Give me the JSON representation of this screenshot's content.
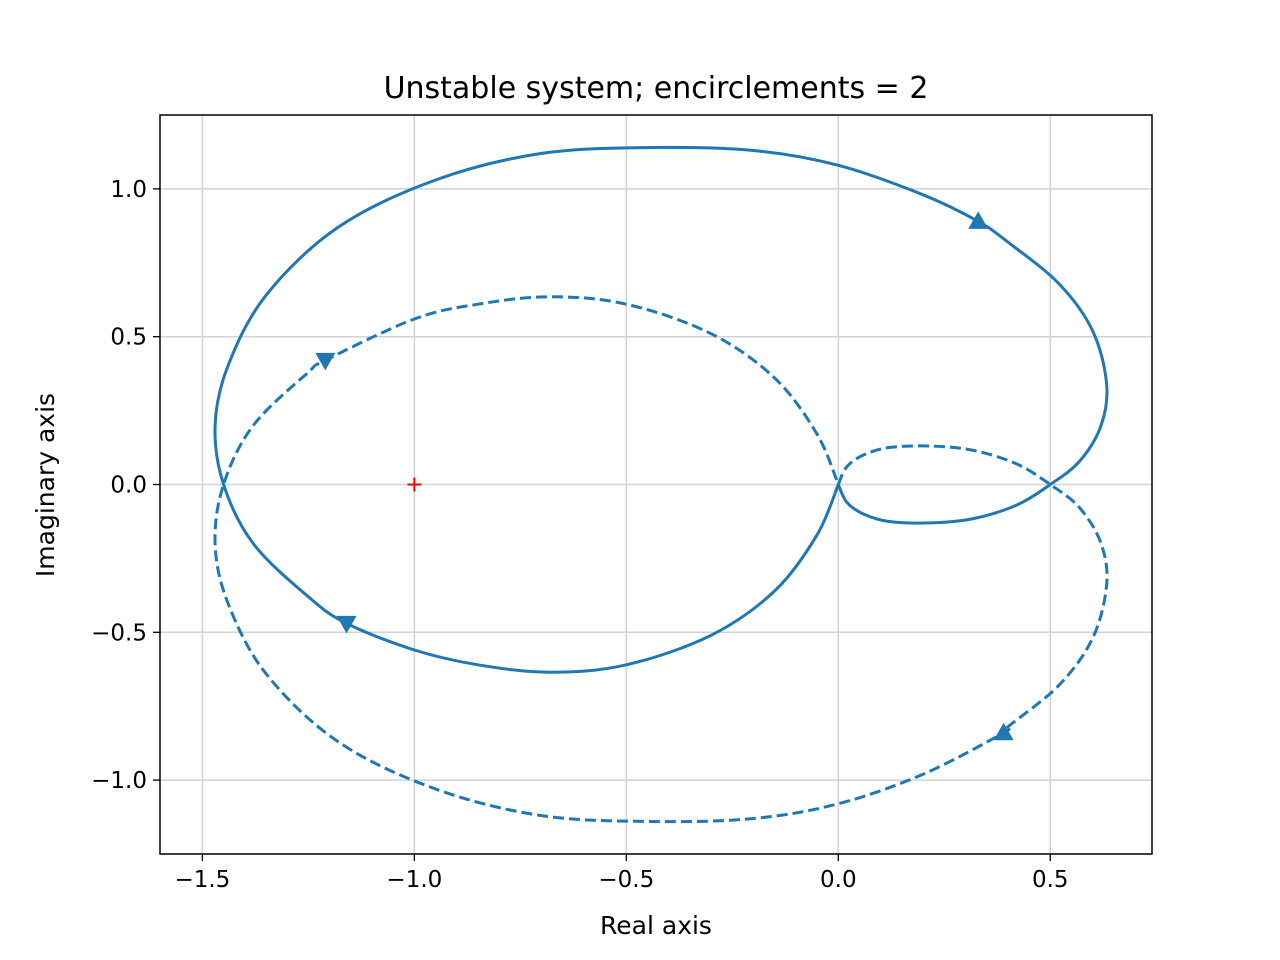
{
  "chart_data": {
    "type": "line",
    "title": "Unstable system; encirclements = 2",
    "xlabel": "Real axis",
    "ylabel": "Imaginary axis",
    "xlim": [
      -1.6,
      0.74
    ],
    "ylim": [
      -1.25,
      1.25
    ],
    "grid": true,
    "xticks": [
      -1.5,
      -1.0,
      -0.5,
      0.0,
      0.5
    ],
    "yticks": [
      -1.0,
      -0.5,
      0.0,
      0.5,
      1.0
    ],
    "xtick_labels": [
      "−1.5",
      "−1.0",
      "−0.5",
      "0.0",
      "0.5"
    ],
    "ytick_labels": [
      "−1.0",
      "−0.5",
      "0.0",
      "0.5",
      "1.0"
    ],
    "critical_point": {
      "x": -1.0,
      "y": 0.0,
      "marker": "+",
      "color": "#ff0000"
    },
    "line_color": "#1f77b4",
    "series": [
      {
        "style": "solid",
        "x": [
          0.0,
          0.02,
          0.06,
          0.12,
          0.22,
          0.32,
          0.42,
          0.5,
          0.57,
          0.62,
          0.633,
          0.6,
          0.52,
          0.4,
          0.33,
          0.2,
          0.0,
          -0.2,
          -0.44,
          -0.7,
          -0.95,
          -1.18,
          -1.35,
          -1.44,
          -1.47,
          -1.45,
          -1.38,
          -1.25,
          -1.16,
          -1.0,
          -0.85,
          -0.68,
          -0.5,
          -0.3,
          -0.15,
          -0.05,
          0.0
        ],
        "y": [
          0.0,
          -0.06,
          -0.1,
          -0.125,
          -0.13,
          -0.115,
          -0.07,
          0.0,
          0.08,
          0.2,
          0.34,
          0.52,
          0.68,
          0.82,
          0.89,
          0.98,
          1.08,
          1.13,
          1.14,
          1.12,
          1.03,
          0.87,
          0.64,
          0.4,
          0.2,
          0.0,
          -0.2,
          -0.38,
          -0.47,
          -0.56,
          -0.61,
          -0.635,
          -0.61,
          -0.51,
          -0.36,
          -0.17,
          0.0
        ]
      },
      {
        "style": "dashed",
        "x": [
          0.0,
          0.02,
          0.06,
          0.12,
          0.22,
          0.32,
          0.42,
          0.5,
          0.57,
          0.62,
          0.633,
          0.6,
          0.52,
          0.4,
          0.39,
          0.2,
          0.0,
          -0.2,
          -0.44,
          -0.7,
          -0.95,
          -1.18,
          -1.35,
          -1.44,
          -1.47,
          -1.45,
          -1.38,
          -1.25,
          -1.21,
          -1.0,
          -0.85,
          -0.68,
          -0.5,
          -0.3,
          -0.15,
          -0.05,
          0.0
        ],
        "y": [
          0.0,
          0.06,
          0.1,
          0.125,
          0.13,
          0.115,
          0.07,
          0.0,
          -0.08,
          -0.2,
          -0.34,
          -0.52,
          -0.68,
          -0.82,
          -0.84,
          -0.98,
          -1.08,
          -1.13,
          -1.14,
          -1.12,
          -1.03,
          -0.87,
          -0.64,
          -0.4,
          -0.2,
          0.0,
          0.2,
          0.38,
          0.42,
          0.56,
          0.61,
          0.635,
          0.61,
          0.51,
          0.36,
          0.17,
          0.0
        ]
      }
    ],
    "arrows": [
      {
        "x": 0.33,
        "y": 0.89,
        "direction": "up"
      },
      {
        "x": -1.16,
        "y": -0.47,
        "direction": "down"
      },
      {
        "x": 0.39,
        "y": -0.84,
        "direction": "up"
      },
      {
        "x": -1.21,
        "y": 0.42,
        "direction": "down"
      }
    ]
  }
}
